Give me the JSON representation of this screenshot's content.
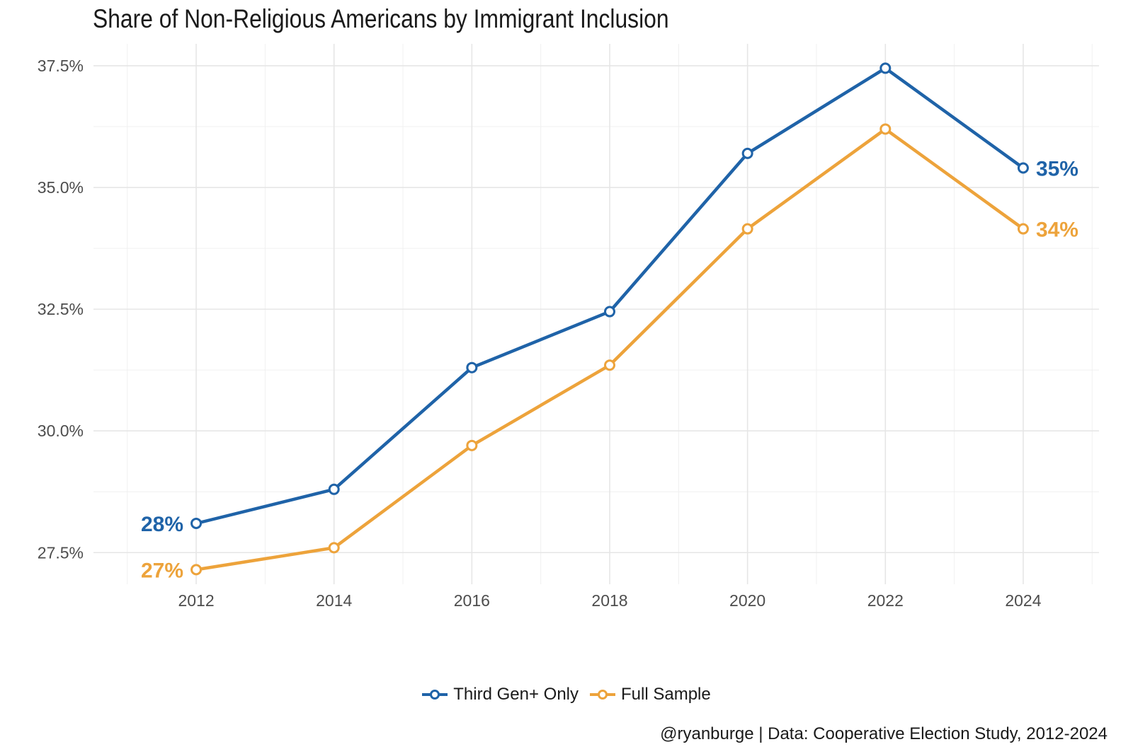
{
  "chart_data": {
    "type": "line",
    "title": "Share of Non-Religious Americans by Immigrant Inclusion",
    "xlabel": "",
    "ylabel": "",
    "x": [
      2012,
      2014,
      2016,
      2018,
      2020,
      2022,
      2024
    ],
    "x_tick_labels": [
      "2012",
      "2014",
      "2016",
      "2018",
      "2020",
      "2022",
      "2024"
    ],
    "y_ticks": [
      27.5,
      30.0,
      32.5,
      35.0,
      37.5
    ],
    "y_tick_labels": [
      "27.5%",
      "30.0%",
      "32.5%",
      "35.0%",
      "37.5%"
    ],
    "xlim": [
      2010.9,
      2025.1
    ],
    "ylim": [
      26.85,
      37.95
    ],
    "grid": true,
    "legend_position": "bottom",
    "series": [
      {
        "name": "Third Gen+ Only",
        "color": "#1f63a8",
        "values": [
          28.1,
          28.8,
          31.3,
          32.45,
          35.7,
          37.45,
          35.4
        ],
        "start_label": "28%",
        "end_label": "35%"
      },
      {
        "name": "Full Sample",
        "color": "#eda33b",
        "values": [
          27.15,
          27.6,
          29.7,
          31.35,
          34.15,
          36.2,
          34.15
        ],
        "start_label": "27%",
        "end_label": "34%"
      }
    ],
    "caption": "@ryanburge | Data: Cooperative Election Study, 2012-2024"
  }
}
